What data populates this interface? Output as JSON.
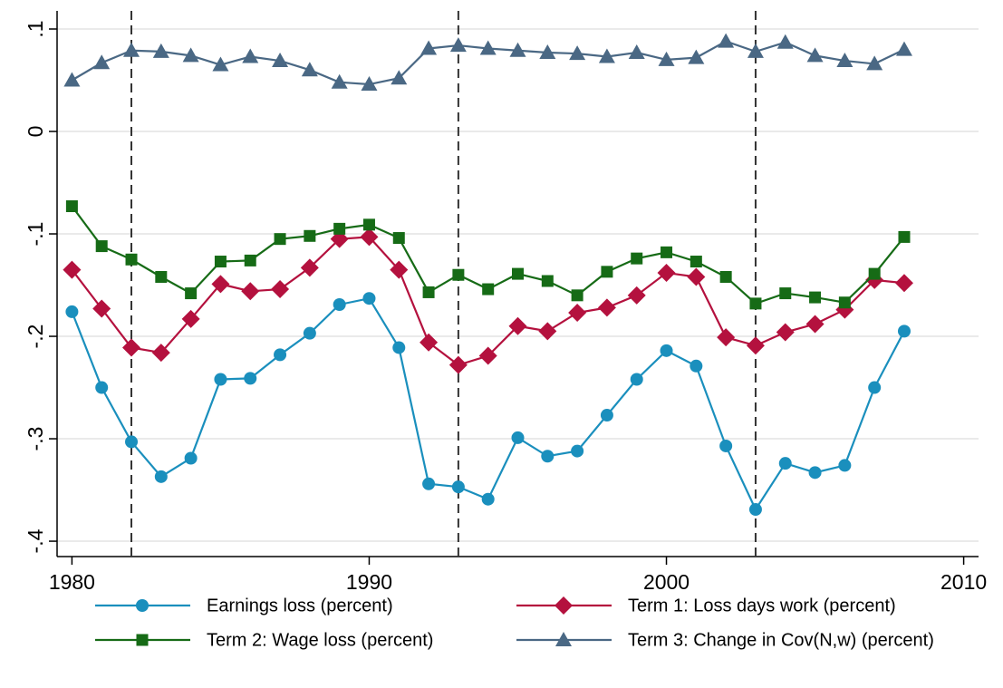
{
  "chart_data": {
    "type": "line",
    "x": [
      1980,
      1981,
      1982,
      1983,
      1984,
      1985,
      1986,
      1987,
      1988,
      1989,
      1990,
      1991,
      1992,
      1993,
      1994,
      1995,
      1996,
      1997,
      1998,
      1999,
      2000,
      2001,
      2002,
      2003,
      2004,
      2005,
      2006,
      2007,
      2008
    ],
    "series": [
      {
        "name": "Earnings loss (percent)",
        "color": "#1a8fbd",
        "marker": "circle",
        "values": [
          -0.176,
          -0.25,
          -0.303,
          -0.337,
          -0.319,
          -0.242,
          -0.241,
          -0.218,
          -0.197,
          -0.169,
          -0.163,
          -0.211,
          -0.344,
          -0.347,
          -0.359,
          -0.299,
          -0.317,
          -0.312,
          -0.277,
          -0.242,
          -0.214,
          -0.229,
          -0.307,
          -0.369,
          -0.324,
          -0.333,
          -0.326,
          -0.25,
          -0.195
        ]
      },
      {
        "name": "Term 1: Loss days work (percent)",
        "color": "#b4113e",
        "marker": "diamond",
        "values": [
          -0.135,
          -0.173,
          -0.211,
          -0.216,
          -0.183,
          -0.149,
          -0.156,
          -0.154,
          -0.133,
          -0.105,
          -0.103,
          -0.135,
          -0.206,
          -0.228,
          -0.219,
          -0.19,
          -0.195,
          -0.177,
          -0.172,
          -0.16,
          -0.138,
          -0.142,
          -0.201,
          -0.209,
          -0.196,
          -0.188,
          -0.174,
          -0.145,
          -0.148
        ]
      },
      {
        "name": "Term 2: Wage loss (percent)",
        "color": "#166b16",
        "marker": "square",
        "values": [
          -0.073,
          -0.112,
          -0.125,
          -0.142,
          -0.158,
          -0.127,
          -0.126,
          -0.105,
          -0.102,
          -0.095,
          -0.091,
          -0.104,
          -0.157,
          -0.14,
          -0.154,
          -0.139,
          -0.146,
          -0.16,
          -0.137,
          -0.124,
          -0.118,
          -0.127,
          -0.142,
          -0.168,
          -0.158,
          -0.162,
          -0.167,
          -0.139,
          -0.103
        ]
      },
      {
        "name": "Term 3: Change in Cov(N,w) (percent)",
        "color": "#4a6884",
        "marker": "triangle",
        "values": [
          0.05,
          0.067,
          0.079,
          0.078,
          0.074,
          0.065,
          0.073,
          0.069,
          0.06,
          0.048,
          0.046,
          0.052,
          0.081,
          0.084,
          0.081,
          0.079,
          0.077,
          0.076,
          0.073,
          0.077,
          0.07,
          0.072,
          0.088,
          0.078,
          0.087,
          0.074,
          0.069,
          0.066,
          0.08
        ]
      }
    ],
    "xlim": [
      1979.5,
      2010.5
    ],
    "xticks": [
      1980,
      1990,
      2000,
      2010
    ],
    "ylim": [
      -0.415,
      0.1177
    ],
    "yticks": [
      {
        "value": 0.1,
        "label": ".1"
      },
      0,
      {
        "value": -0.1,
        "label": "-.1"
      },
      {
        "value": -0.2,
        "label": "-.2"
      },
      {
        "value": -0.3,
        "label": "-.3"
      },
      {
        "value": -0.4,
        "label": "-.4"
      }
    ],
    "vlines": [
      1982,
      1993,
      2003
    ],
    "grid": true,
    "legend": "bottom"
  }
}
